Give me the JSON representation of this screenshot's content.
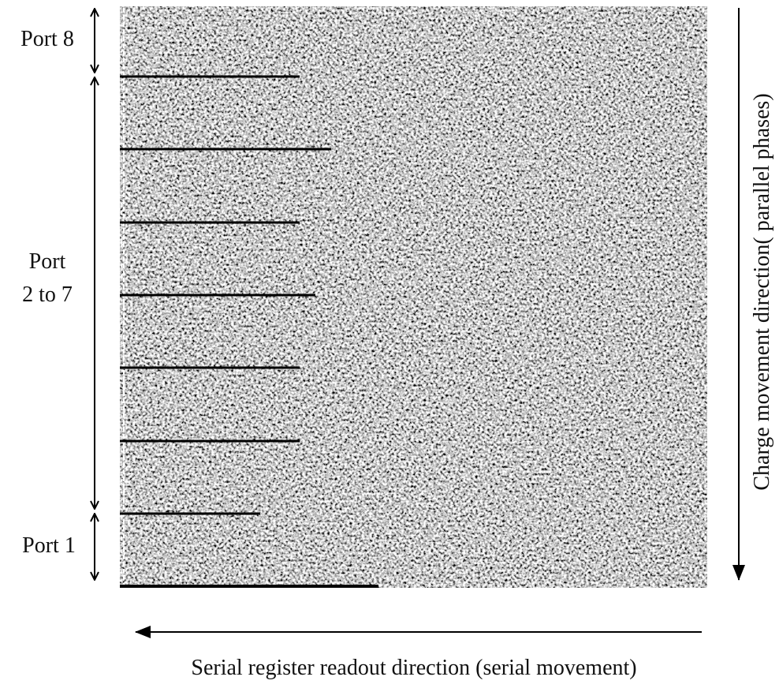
{
  "labels": {
    "port_8": "Port 8",
    "port_2_to_7": [
      "Port",
      "2 to 7"
    ],
    "port_1": "Port 1"
  },
  "vertical_caption": "Charge movement direction( parallel phases)",
  "horizontal_caption": "Serial register readout direction (serial movement)"
}
